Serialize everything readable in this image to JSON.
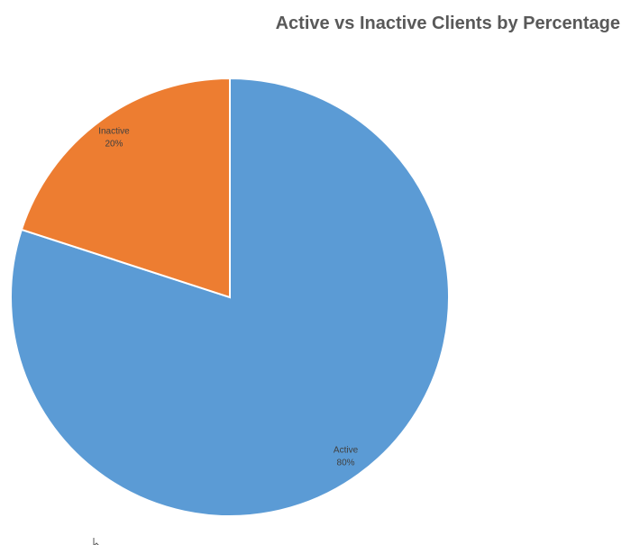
{
  "chart_data": {
    "type": "pie",
    "title": "Active vs Inactive Clients by Percentage",
    "categories": [
      "Active",
      "Inactive"
    ],
    "values": [
      80,
      20
    ],
    "value_labels": [
      "80%",
      "20%"
    ],
    "colors": [
      "#5b9bd5",
      "#ed7d31"
    ]
  }
}
